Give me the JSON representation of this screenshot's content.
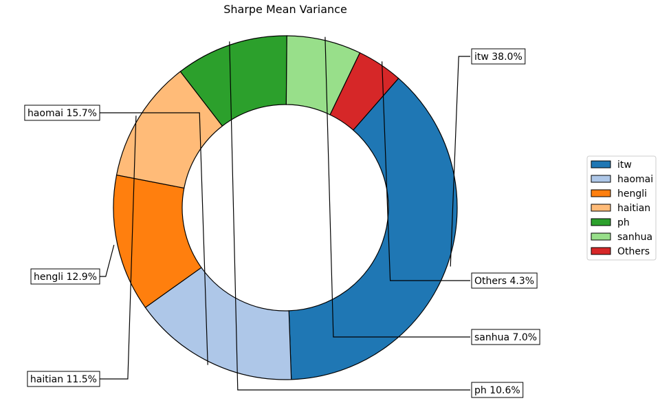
{
  "chart_data": {
    "type": "pie",
    "title": "Sharpe Mean Variance",
    "categories": [
      "itw",
      "haomai",
      "hengli",
      "haitian",
      "ph",
      "sanhua",
      "Others"
    ],
    "values": [
      38.0,
      15.7,
      12.9,
      11.5,
      10.6,
      7.0,
      4.3
    ],
    "labels": [
      "itw 38.0%",
      "haomai 15.7%",
      "hengli 12.9%",
      "haitian 11.5%",
      "ph 10.6%",
      "sanhua 7.0%",
      "Others 4.3%"
    ],
    "colors": [
      "#1f77b4",
      "#aec7e8",
      "#ff7f0e",
      "#ffbb78",
      "#2ca02c",
      "#98df8a",
      "#d62728"
    ],
    "donut": true,
    "legend": {
      "placement": "right",
      "entries": [
        "itw",
        "haomai",
        "hengli",
        "haitian",
        "ph",
        "sanhua",
        "Others"
      ]
    }
  }
}
